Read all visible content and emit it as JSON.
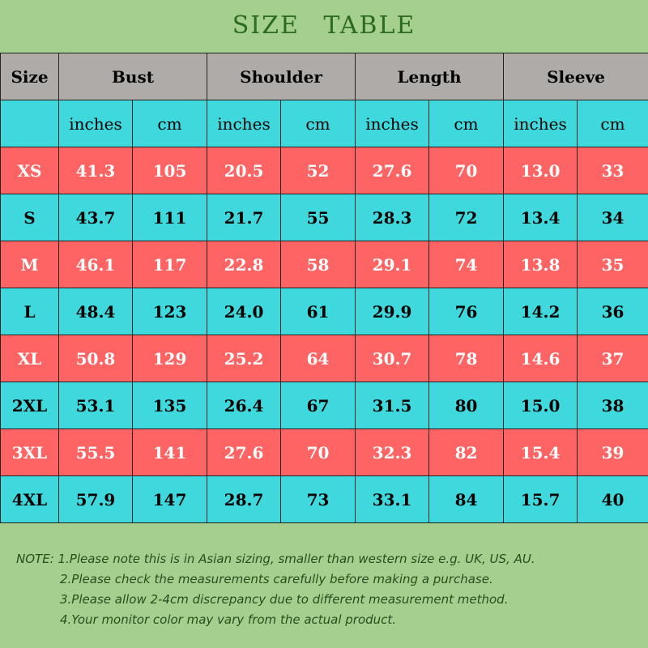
{
  "title": "SIZE  TABLE",
  "headers": {
    "size": "Size",
    "bust": "Bust",
    "shoulder": "Shoulder",
    "length": "Length",
    "sleeve": "Sleeve"
  },
  "units": {
    "inches": "inches",
    "cm": "cm"
  },
  "rows": [
    {
      "size": "XS",
      "bust_in": "41.3",
      "bust_cm": "105",
      "shoulder_in": "20.5",
      "shoulder_cm": "52",
      "length_in": "27.6",
      "length_cm": "70",
      "sleeve_in": "13.0",
      "sleeve_cm": "33"
    },
    {
      "size": "S",
      "bust_in": "43.7",
      "bust_cm": "111",
      "shoulder_in": "21.7",
      "shoulder_cm": "55",
      "length_in": "28.3",
      "length_cm": "72",
      "sleeve_in": "13.4",
      "sleeve_cm": "34"
    },
    {
      "size": "M",
      "bust_in": "46.1",
      "bust_cm": "117",
      "shoulder_in": "22.8",
      "shoulder_cm": "58",
      "length_in": "29.1",
      "length_cm": "74",
      "sleeve_in": "13.8",
      "sleeve_cm": "35"
    },
    {
      "size": "L",
      "bust_in": "48.4",
      "bust_cm": "123",
      "shoulder_in": "24.0",
      "shoulder_cm": "61",
      "length_in": "29.9",
      "length_cm": "76",
      "sleeve_in": "14.2",
      "sleeve_cm": "36"
    },
    {
      "size": "XL",
      "bust_in": "50.8",
      "bust_cm": "129",
      "shoulder_in": "25.2",
      "shoulder_cm": "64",
      "length_in": "30.7",
      "length_cm": "78",
      "sleeve_in": "14.6",
      "sleeve_cm": "37"
    },
    {
      "size": "2XL",
      "bust_in": "53.1",
      "bust_cm": "135",
      "shoulder_in": "26.4",
      "shoulder_cm": "67",
      "length_in": "31.5",
      "length_cm": "80",
      "sleeve_in": "15.0",
      "sleeve_cm": "38"
    },
    {
      "size": "3XL",
      "bust_in": "55.5",
      "bust_cm": "141",
      "shoulder_in": "27.6",
      "shoulder_cm": "70",
      "length_in": "32.3",
      "length_cm": "82",
      "sleeve_in": "15.4",
      "sleeve_cm": "39"
    },
    {
      "size": "4XL",
      "bust_in": "57.9",
      "bust_cm": "147",
      "shoulder_in": "28.7",
      "shoulder_cm": "73",
      "length_in": "33.1",
      "length_cm": "84",
      "sleeve_in": "15.7",
      "sleeve_cm": "40"
    }
  ],
  "notes": [
    "NOTE: 1.Please note this is in Asian sizing, smaller than western size e.g. UK, US, AU.",
    "2.Please check the measurements carefully before making a purchase.",
    "3.Please allow 2-4cm discrepancy due to different measurement method.",
    "4.Your monitor color may vary from the actual product."
  ],
  "colors": {
    "background": "#a5cf8e",
    "header": "#aeaba8",
    "cyan_row": "#3fd8dc",
    "red_row": "#fe6464",
    "title": "#2b6b1e"
  }
}
